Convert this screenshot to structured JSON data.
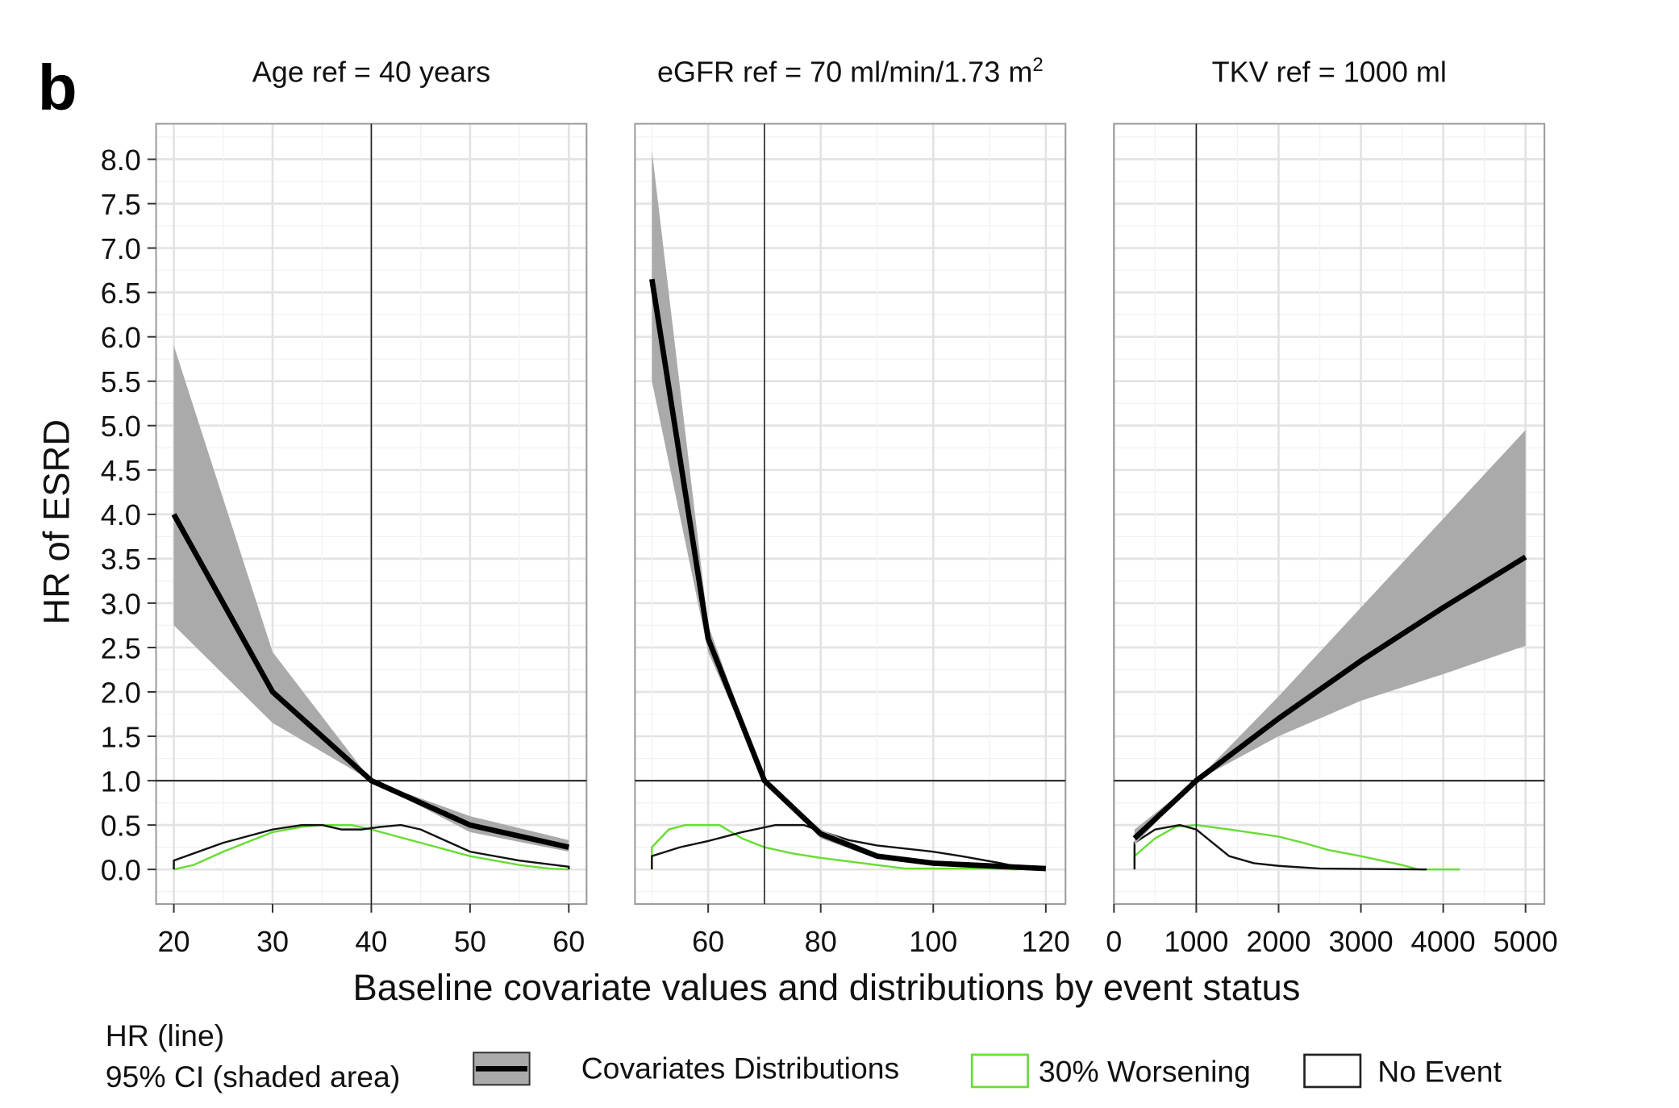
{
  "figure_label": "b",
  "chart_data": [
    {
      "type": "line",
      "title": "Age ref = 40 years",
      "reference_x": 40,
      "xlim": [
        18.2,
        61.8
      ],
      "ylim": [
        -0.39,
        8.4
      ],
      "xticks": [
        20,
        30,
        40,
        50,
        60
      ],
      "hr": {
        "x": [
          20,
          30,
          40,
          50,
          60
        ],
        "y": [
          4.0,
          2.0,
          1.0,
          0.5,
          0.25
        ]
      },
      "ci_upper": {
        "x": [
          20,
          30,
          40,
          50,
          60
        ],
        "y": [
          5.9,
          2.45,
          1.0,
          0.6,
          0.33
        ]
      },
      "ci_lower": {
        "x": [
          20,
          30,
          40,
          50,
          60
        ],
        "y": [
          2.75,
          1.65,
          1.0,
          0.42,
          0.2
        ]
      },
      "dist_worsening": {
        "x": [
          20,
          22,
          25,
          30,
          33,
          35,
          38,
          40,
          45,
          50,
          55,
          58,
          60
        ],
        "y": [
          0,
          0.05,
          0.2,
          0.42,
          0.48,
          0.5,
          0.5,
          0.45,
          0.3,
          0.15,
          0.05,
          0.01,
          0
        ]
      },
      "dist_no_event": {
        "x": [
          20,
          25,
          30,
          33,
          35,
          37,
          39,
          41,
          43,
          45,
          48,
          50,
          55,
          60
        ],
        "y": [
          0.1,
          0.3,
          0.45,
          0.5,
          0.5,
          0.45,
          0.45,
          0.48,
          0.5,
          0.45,
          0.3,
          0.2,
          0.1,
          0.03
        ]
      }
    },
    {
      "type": "line",
      "title": "eGFR ref = 70 ml/min/1.73 m",
      "title_superscript": "2",
      "reference_x": 70,
      "xlim": [
        47,
        123.5
      ],
      "ylim": [
        -0.39,
        8.4
      ],
      "xticks": [
        60,
        80,
        100,
        120
      ],
      "hr": {
        "x": [
          50,
          60,
          70,
          80,
          90,
          100,
          110,
          120
        ],
        "y": [
          6.65,
          2.6,
          1.0,
          0.4,
          0.15,
          0.07,
          0.04,
          0.01
        ]
      },
      "ci_upper": {
        "x": [
          50,
          60,
          70,
          80,
          90,
          100,
          110,
          120
        ],
        "y": [
          8.1,
          2.75,
          1.0,
          0.45,
          0.18,
          0.1,
          0.07,
          0.04
        ]
      },
      "ci_lower": {
        "x": [
          50,
          60,
          70,
          80,
          90,
          100,
          110,
          120
        ],
        "y": [
          5.5,
          2.45,
          1.0,
          0.35,
          0.12,
          0.04,
          0.01,
          -0.02
        ]
      },
      "dist_worsening": {
        "x": [
          50,
          53,
          56,
          62,
          66,
          70,
          75,
          80,
          90,
          95,
          110,
          115
        ],
        "y": [
          0.25,
          0.45,
          0.5,
          0.5,
          0.35,
          0.25,
          0.18,
          0.13,
          0.05,
          0.01,
          0.01,
          0
        ]
      },
      "dist_no_event": {
        "x": [
          50,
          55,
          60,
          66,
          72,
          77,
          80,
          85,
          90,
          100,
          105,
          112,
          115,
          120
        ],
        "y": [
          0.15,
          0.25,
          0.32,
          0.42,
          0.5,
          0.5,
          0.43,
          0.33,
          0.27,
          0.2,
          0.15,
          0.07,
          0.03,
          0
        ]
      }
    },
    {
      "type": "line",
      "title": "TKV ref = 1000 ml",
      "reference_x": 1000,
      "xlim": [
        0,
        5230
      ],
      "ylim": [
        -0.39,
        8.4
      ],
      "xticks": [
        0,
        1000,
        2000,
        3000,
        4000,
        5000
      ],
      "hr": {
        "x": [
          250,
          1000,
          2000,
          3000,
          4000,
          5000
        ],
        "y": [
          0.35,
          1.0,
          1.7,
          2.35,
          2.95,
          3.52
        ]
      },
      "ci_upper": {
        "x": [
          250,
          1000,
          2000,
          3000,
          4000,
          5000
        ],
        "y": [
          0.45,
          1.0,
          1.95,
          2.95,
          3.95,
          4.95
        ]
      },
      "ci_lower": {
        "x": [
          250,
          1000,
          2000,
          3000,
          4000,
          5000
        ],
        "y": [
          0.28,
          1.0,
          1.5,
          1.9,
          2.2,
          2.52
        ]
      },
      "dist_worsening": {
        "x": [
          250,
          500,
          750,
          1000,
          1400,
          2000,
          2300,
          2600,
          3000,
          3500,
          3700,
          4200
        ],
        "y": [
          0.15,
          0.35,
          0.48,
          0.5,
          0.45,
          0.37,
          0.3,
          0.22,
          0.15,
          0.05,
          0.0,
          0
        ]
      },
      "dist_no_event": {
        "x": [
          250,
          500,
          800,
          1000,
          1200,
          1400,
          1700,
          2000,
          2500,
          3800
        ],
        "y": [
          0.3,
          0.45,
          0.5,
          0.45,
          0.3,
          0.15,
          0.07,
          0.04,
          0.01,
          0
        ]
      }
    }
  ],
  "yticks": [
    "0.0",
    "0.5",
    "1.0",
    "1.5",
    "2.0",
    "2.5",
    "3.0",
    "3.5",
    "4.0",
    "4.5",
    "5.0",
    "5.5",
    "6.0",
    "6.5",
    "7.0",
    "7.5",
    "8.0"
  ],
  "ylabel": "HR of ESRD",
  "xlabel": "Baseline covariate values and distributions by event status",
  "legend": {
    "hr_line": "HR (line)",
    "ci": "95% CI (shaded area)",
    "dist_title": "Covariates Distributions",
    "worsening": "30% Worsening",
    "no_event": "No Event"
  },
  "colors": {
    "worsening": "#66dd33",
    "no_event": "#111111",
    "ci": "#aaaaaa",
    "hr": "#000000"
  }
}
